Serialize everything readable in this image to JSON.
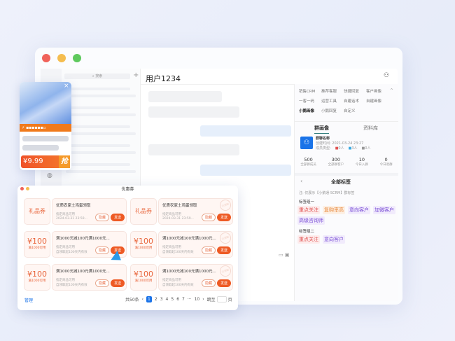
{
  "colors": {
    "accent": "#ee5a24",
    "blue": "#1a73e8",
    "red_tag": "#e05252",
    "orange_tag": "#e8863a",
    "purple_tag": "#7b4fd6"
  },
  "sidebar": {
    "search_placeholder": "搜索",
    "add_icon": "plus-icon"
  },
  "chat": {
    "title": "用户1234",
    "user_icon": "user-icon"
  },
  "right": {
    "tool_tabs": [
      "销售CRM",
      "推荐客服",
      "快捷回复",
      "客户画像",
      "一客一码",
      "运营工具",
      "自建话术",
      "自建画像",
      "小鹅画像",
      "小鹅回复",
      "自定义"
    ],
    "active_tool": "小鹅画像",
    "tabs": [
      "群画像",
      "资料库"
    ],
    "group": {
      "name": "群聊名称",
      "created": "创建时间: 2021-03-24 23:27",
      "member_type_label": "成员类型:",
      "counts": [
        "0人",
        "3人",
        "0人"
      ]
    },
    "stats": [
      {
        "value": "500",
        "label": "全部群成员"
      },
      {
        "value": "300",
        "label": "全部群客户"
      },
      {
        "value": "10",
        "label": "今日入群"
      },
      {
        "value": "0",
        "label": "今日退群"
      }
    ],
    "tags_title": "全部标签",
    "note": "注: 仅展示【小鹅通·SCRM】群标签",
    "group1_label": "标签组一",
    "group1": [
      "重点关注",
      "复购率高",
      "意向客户",
      "加微客户",
      "高级咨询师"
    ],
    "group2_label": "标签组二",
    "group2": [
      "重点关注",
      "意向客户"
    ]
  },
  "promo": {
    "price": "¥9.99",
    "grab": "抢"
  },
  "coupons": {
    "title": "优惠券",
    "items": [
      {
        "left": "礼品券",
        "sub": "",
        "name": "优质农家土鸡蛋领取",
        "line1": "指定商品可用",
        "line2": "2024-03-31 23:59...",
        "stamp": false
      },
      {
        "left": "礼品券",
        "sub": "",
        "name": "优质农家土鸡蛋领取",
        "line1": "指定商品可用",
        "line2": "2024-03-31 23:59...",
        "stamp": true
      },
      {
        "left": "¥100",
        "sub": "满1000可用",
        "name": "满1000元减100元满1000元...",
        "line1": "指定商品可用",
        "line2": "自领取起100天内有效",
        "stamp": false
      },
      {
        "left": "¥100",
        "sub": "满1000可用",
        "name": "满1000元减100元满1000元...",
        "line1": "指定商品可用",
        "line2": "自领取起100天内有效",
        "stamp": true
      },
      {
        "left": "¥100",
        "sub": "满1000可用",
        "name": "满1000元减100元满1000元...",
        "line1": "指定商品可用",
        "line2": "自领取起100天内有效",
        "stamp": false
      },
      {
        "left": "¥100",
        "sub": "满1000可用",
        "name": "满1000元减100元满1000元...",
        "line1": "指定商品可用",
        "line2": "自领取起100天内有效",
        "stamp": true
      }
    ],
    "hide": "隐藏",
    "send": "发送",
    "stamp_text": "已领取",
    "manage": "管理",
    "total": "共50条",
    "pages": [
      "1",
      "2",
      "3",
      "4",
      "5",
      "6",
      "7",
      "···",
      "10"
    ],
    "current_page": "1",
    "goto": "跳至",
    "page_unit": "页"
  }
}
